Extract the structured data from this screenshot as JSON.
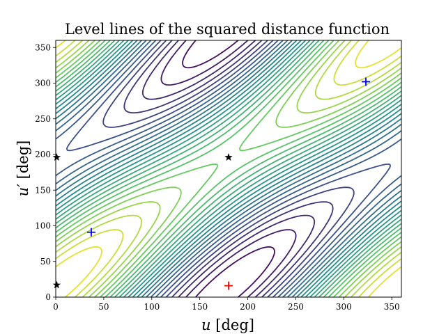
{
  "chart_data": {
    "type": "contour",
    "title": "Level lines of the squared distance function",
    "xlabel": {
      "var": "u",
      "unit": " [deg]"
    },
    "ylabel": {
      "var": "u′",
      "unit": " [deg]"
    },
    "xlim": [
      0,
      360
    ],
    "ylim": [
      0,
      360
    ],
    "xticks": [
      0,
      50,
      100,
      150,
      200,
      250,
      300,
      350
    ],
    "yticks": [
      0,
      50,
      100,
      150,
      200,
      250,
      300,
      350
    ],
    "colormap": [
      "#440154",
      "#3b528b",
      "#21918c",
      "#5ec962",
      "#fde725"
    ],
    "maxima": [
      {
        "u": 180,
        "v": 16,
        "color": "#ff0000",
        "marker": "plus"
      }
    ],
    "minima": [
      {
        "u": 37,
        "v": 91,
        "color": "#0000ff",
        "marker": "plus"
      },
      {
        "u": 323,
        "v": 302,
        "color": "#0000ff",
        "marker": "plus"
      }
    ],
    "saddles": [
      {
        "u": 180,
        "v": 196,
        "color": "#000000",
        "marker": "star"
      },
      {
        "u": 1,
        "v": 196,
        "color": "#000000",
        "marker": "star"
      },
      {
        "u": 1,
        "v": 17,
        "color": "#000000",
        "marker": "star"
      }
    ]
  }
}
